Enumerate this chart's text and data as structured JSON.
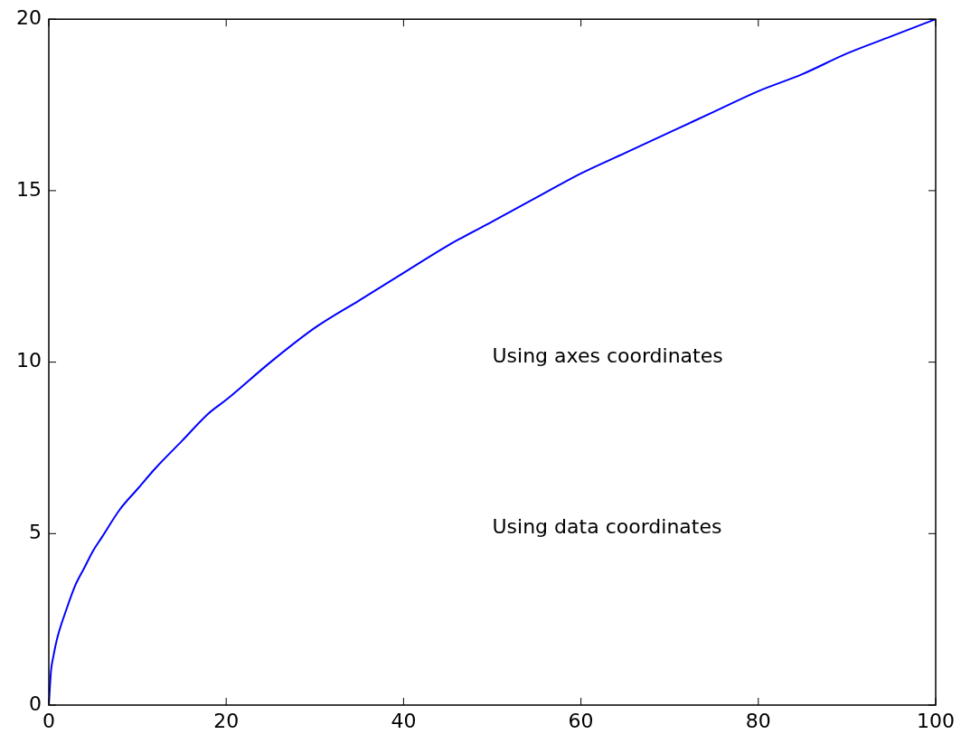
{
  "chart_data": {
    "type": "line",
    "x": [
      0,
      0.25,
      0.5,
      1,
      2,
      3,
      4,
      5,
      6,
      8,
      10,
      12,
      15,
      18,
      20,
      25,
      30,
      35,
      40,
      45,
      50,
      55,
      60,
      65,
      70,
      75,
      80,
      85,
      90,
      95,
      100
    ],
    "series": [
      {
        "color": "#0000ff",
        "values": [
          0,
          1,
          1.4,
          2,
          2.8,
          3.5,
          4,
          4.5,
          4.9,
          5.7,
          6.3,
          6.9,
          7.7,
          8.5,
          8.9,
          10,
          11,
          11.8,
          12.6,
          13.4,
          14.1,
          14.8,
          15.5,
          16.1,
          16.7,
          17.3,
          17.9,
          18.4,
          19,
          19.5,
          20
        ]
      }
    ],
    "xlim": [
      0,
      100
    ],
    "xticks": [
      0,
      20,
      40,
      60,
      80,
      100
    ],
    "ylim": [
      0,
      20
    ],
    "yticks": [
      0,
      5,
      10,
      15,
      20
    ],
    "grid": false,
    "legend": false,
    "marker": "none",
    "line_style": "solid",
    "annotations": [
      "Using axes coordinates",
      "Using data coordinates"
    ]
  }
}
